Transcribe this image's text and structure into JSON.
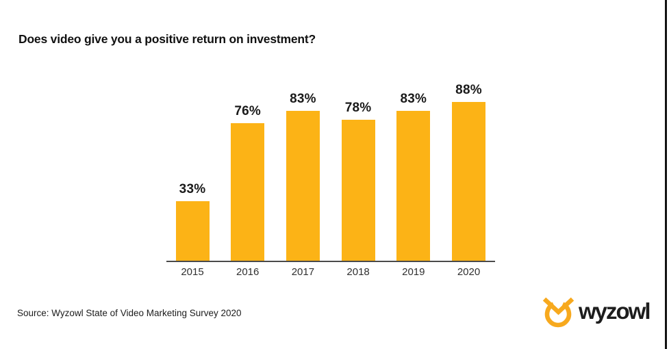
{
  "page": {
    "background_color": "#ffffff",
    "right_edge_border_color": "#121212"
  },
  "chart_data": {
    "type": "bar",
    "title": "Does video give you a positive return on investment?",
    "categories": [
      "2015",
      "2016",
      "2017",
      "2018",
      "2019",
      "2020"
    ],
    "values": [
      33,
      76,
      83,
      78,
      83,
      88
    ],
    "value_labels": [
      "33%",
      "76%",
      "83%",
      "78%",
      "83%",
      "88%"
    ],
    "unit": "%",
    "xlabel": "",
    "ylabel": "",
    "ylim": [
      0,
      100
    ],
    "grid": false,
    "legend": false,
    "bar_color": "#FCB316",
    "axis_line_color": "#4a4a4a",
    "label_color": "#1a1a1a"
  },
  "footer": {
    "source": "Source: Wyzowl State of Video Marketing Survey 2020",
    "logo": {
      "text": "wyzowl",
      "icon": "wyzowl-owl-icon",
      "icon_color": "#F7A91E",
      "text_color": "#1d1d1d"
    }
  }
}
